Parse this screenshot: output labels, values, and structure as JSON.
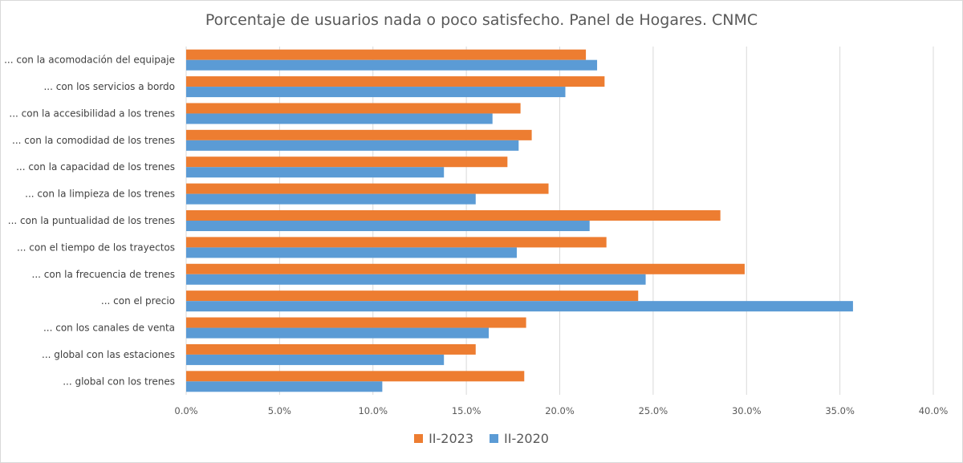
{
  "chart_data": {
    "type": "bar",
    "orientation": "horizontal",
    "title": "Porcentaje de usuarios nada o poco satisfecho. Panel de Hogares. CNMC",
    "xlabel": "",
    "ylabel": "",
    "xlim": [
      0,
      0.4
    ],
    "x_ticks": [
      "0.0%",
      "5.0%",
      "10.0%",
      "15.0%",
      "20.0%",
      "25.0%",
      "30.0%",
      "35.0%",
      "40.0%"
    ],
    "grid": true,
    "legend_position": "bottom",
    "categories": [
      "... con la acomodación del equipaje",
      "... con los servicios a bordo",
      "... con la accesibilidad a los trenes",
      "... con la comodidad de los trenes",
      "... con la capacidad de los trenes",
      "... con la limpieza de los trenes",
      "... con la puntualidad de los trenes",
      "... con el tiempo de los trayectos",
      "... con la frecuencia de trenes",
      "... con el precio",
      "... con los canales de venta",
      "... global con las estaciones",
      "... global con los trenes"
    ],
    "series": [
      {
        "name": "II-2023",
        "color": "#ED7D31",
        "values": [
          0.214,
          0.224,
          0.179,
          0.185,
          0.172,
          0.194,
          0.286,
          0.225,
          0.299,
          0.242,
          0.182,
          0.155,
          0.181
        ]
      },
      {
        "name": "II-2020",
        "color": "#5B9BD5",
        "values": [
          0.22,
          0.203,
          0.164,
          0.178,
          0.138,
          0.155,
          0.216,
          0.177,
          0.246,
          0.357,
          0.162,
          0.138,
          0.105
        ]
      }
    ]
  }
}
